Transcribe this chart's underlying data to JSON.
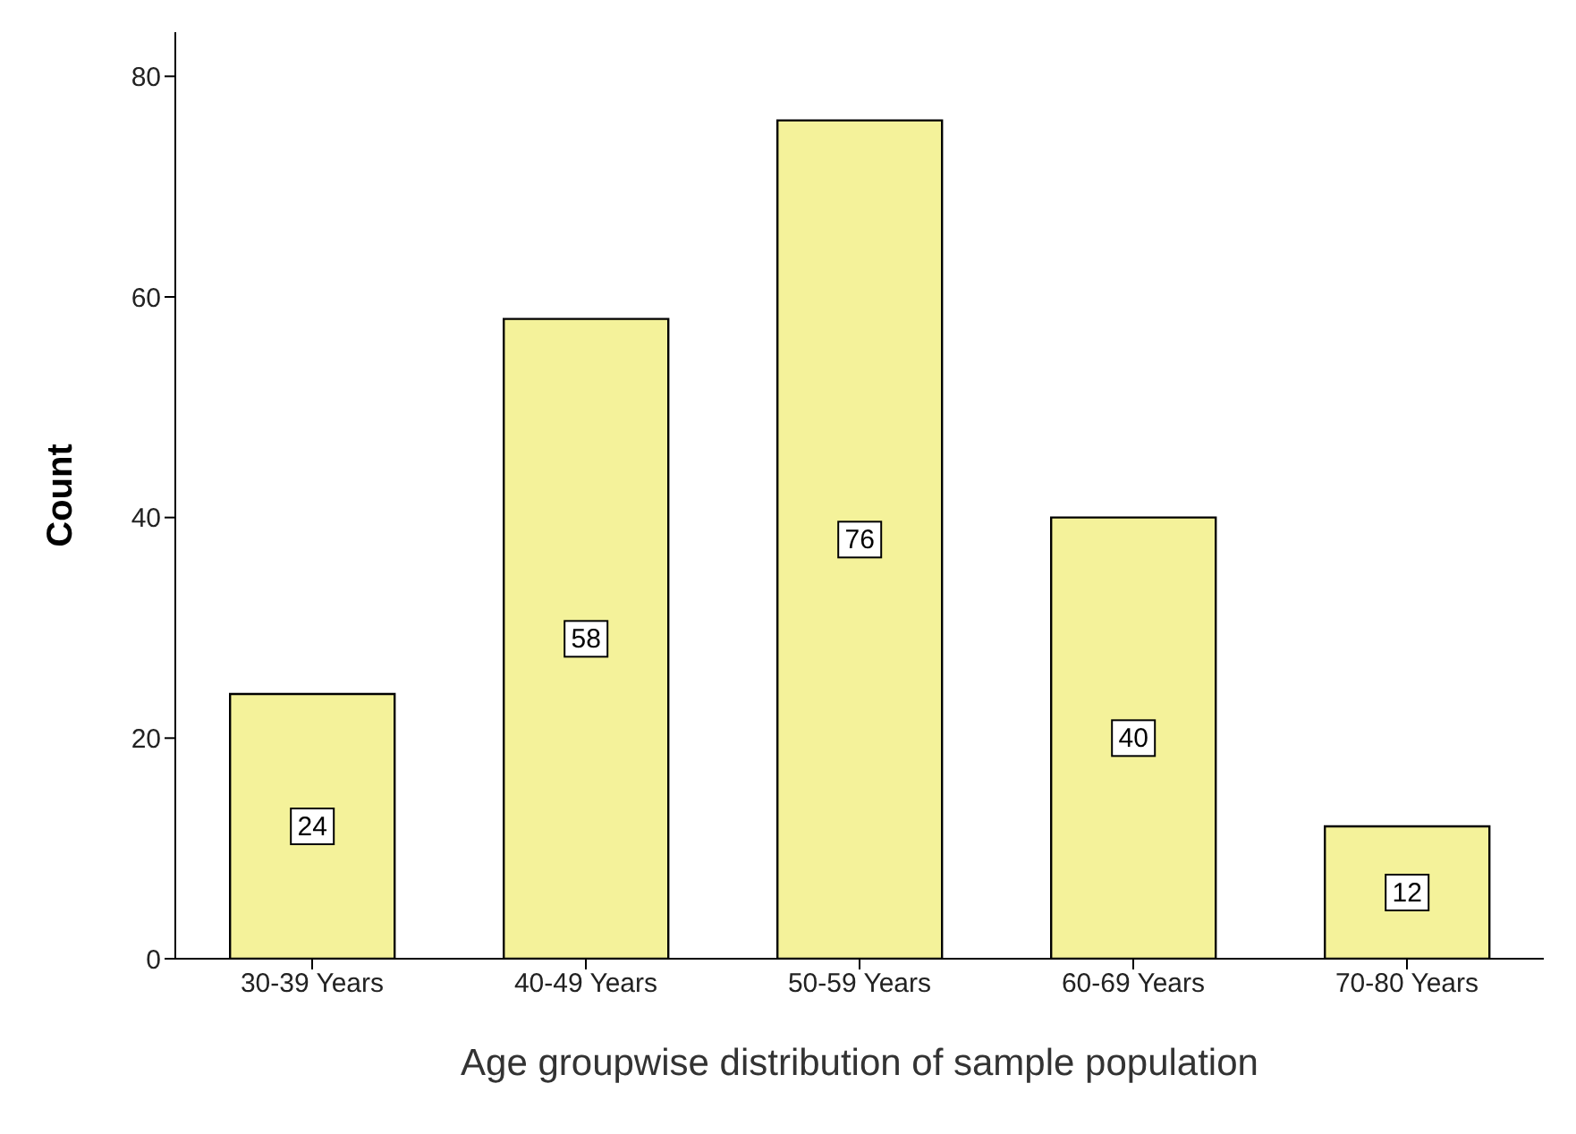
{
  "chart_data": {
    "type": "bar",
    "xlabel": "Age groupwise distribution of sample population",
    "ylabel": "Count",
    "categories": [
      "30-39 Years",
      "40-49 Years",
      "50-59 Years",
      "60-69 Years",
      "70-80 Years"
    ],
    "values": [
      24,
      58,
      76,
      40,
      12
    ],
    "color": "#f4f29a",
    "ylim": [
      0,
      84
    ],
    "yticks": [
      0,
      20,
      40,
      60,
      80
    ],
    "grid": false,
    "legend": false,
    "data_labels": true
  }
}
